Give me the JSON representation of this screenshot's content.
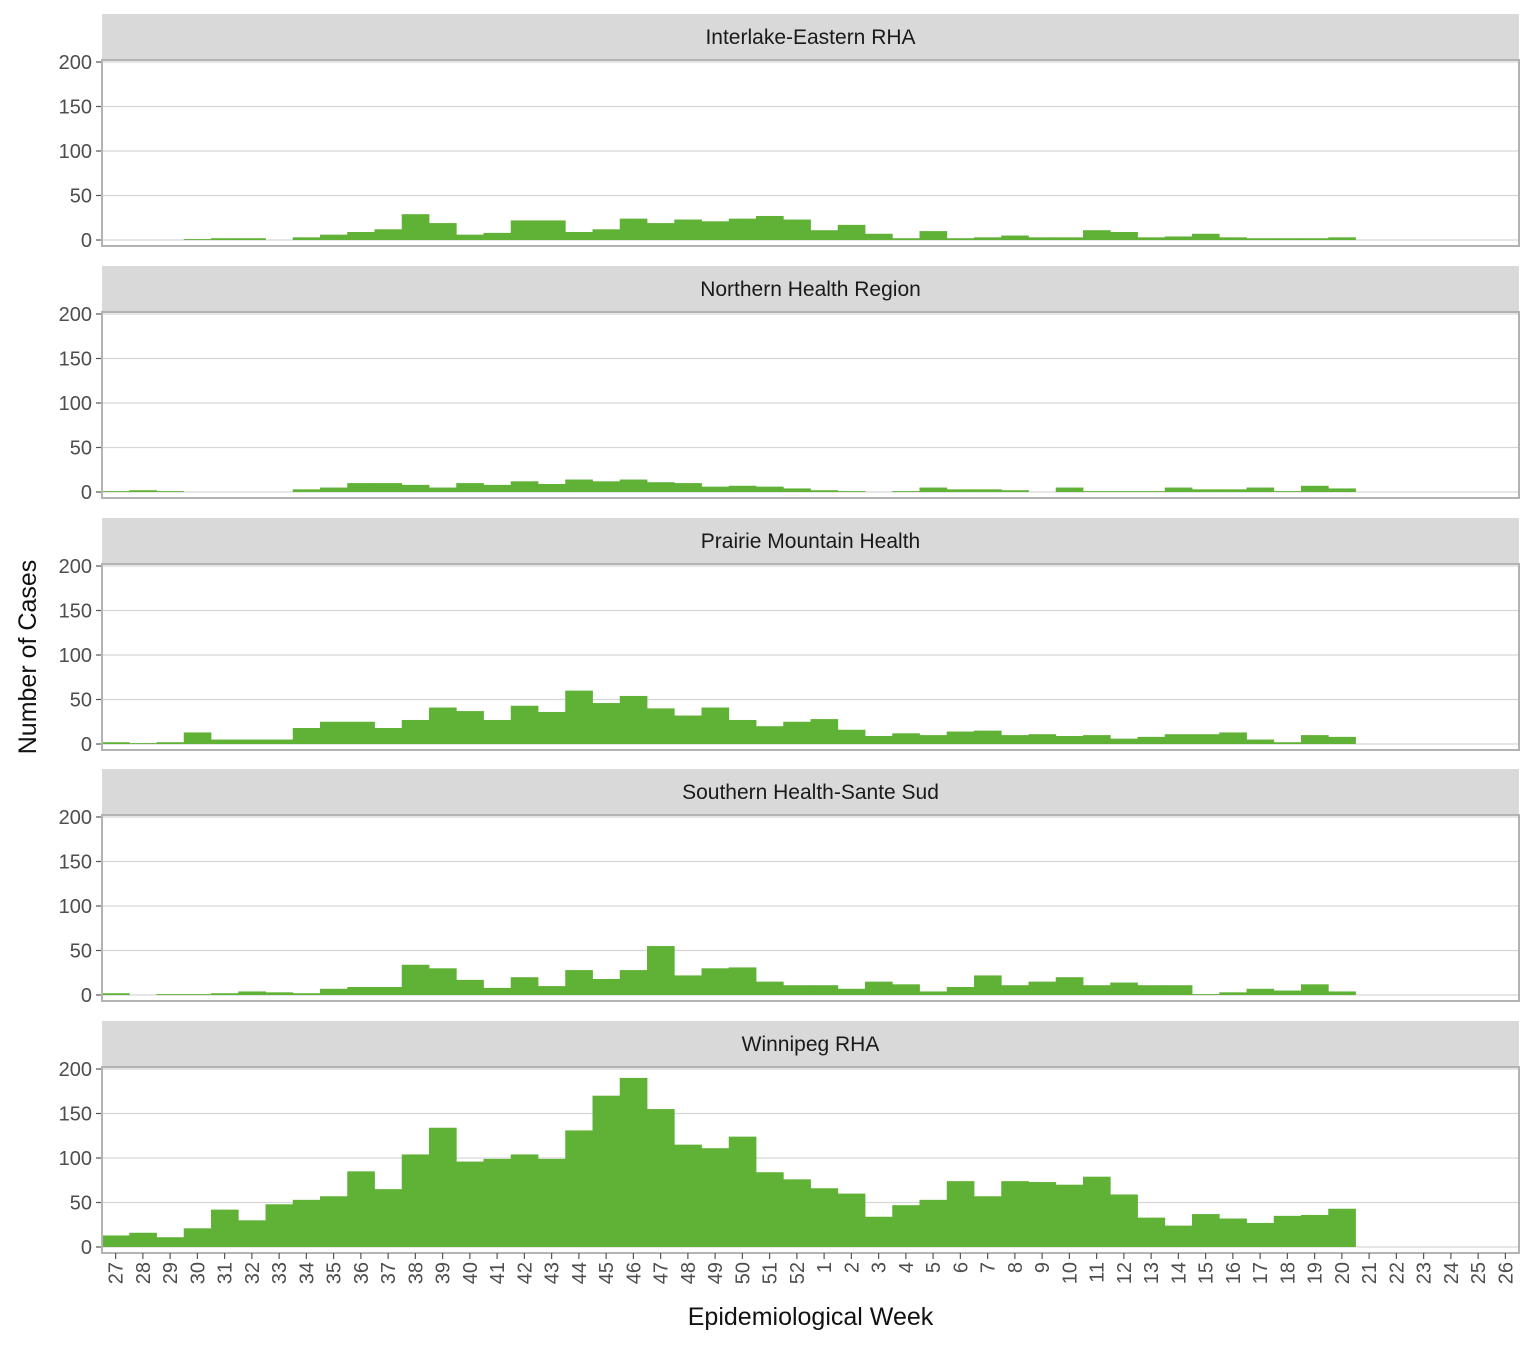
{
  "chart_data": {
    "type": "bar",
    "title": "",
    "xlabel": "Epidemiological Week",
    "ylabel": "Number of Cases",
    "ylim": [
      0,
      200
    ],
    "y_ticks": [
      0,
      50,
      100,
      150,
      200
    ],
    "grid": true,
    "bar_color": "#5fb236",
    "strip_color": "#d9d9d9",
    "categories": [
      "27",
      "28",
      "29",
      "30",
      "31",
      "32",
      "33",
      "34",
      "35",
      "36",
      "37",
      "38",
      "39",
      "40",
      "41",
      "42",
      "43",
      "44",
      "45",
      "46",
      "47",
      "48",
      "49",
      "50",
      "51",
      "52",
      "1",
      "2",
      "3",
      "4",
      "5",
      "6",
      "7",
      "8",
      "9",
      "10",
      "11",
      "12",
      "13",
      "14",
      "15",
      "16",
      "17",
      "18",
      "19",
      "20",
      "21",
      "22",
      "23",
      "24",
      "25",
      "26"
    ],
    "series": [
      {
        "name": "Interlake-Eastern RHA",
        "values": [
          0,
          0,
          0,
          1,
          2,
          2,
          0,
          3,
          6,
          9,
          12,
          29,
          19,
          6,
          8,
          22,
          22,
          9,
          12,
          24,
          19,
          23,
          21,
          24,
          27,
          23,
          11,
          17,
          7,
          2,
          10,
          2,
          3,
          5,
          3,
          3,
          11,
          9,
          3,
          4,
          7,
          3,
          2,
          2,
          2,
          3,
          0,
          0,
          0,
          0,
          0,
          0
        ]
      },
      {
        "name": "Northern Health Region",
        "values": [
          1,
          2,
          1,
          0,
          0,
          0,
          0,
          3,
          5,
          10,
          10,
          8,
          5,
          10,
          8,
          12,
          9,
          14,
          12,
          14,
          11,
          10,
          6,
          7,
          6,
          4,
          2,
          1,
          0,
          1,
          5,
          3,
          3,
          2,
          0,
          5,
          1,
          1,
          1,
          5,
          3,
          3,
          5,
          1,
          7,
          4,
          0,
          0,
          0,
          0,
          0,
          0
        ]
      },
      {
        "name": "Prairie Mountain Health",
        "values": [
          2,
          1,
          2,
          13,
          5,
          5,
          5,
          18,
          25,
          25,
          18,
          27,
          41,
          37,
          27,
          43,
          36,
          60,
          46,
          54,
          40,
          32,
          41,
          27,
          20,
          25,
          28,
          16,
          9,
          12,
          10,
          14,
          15,
          10,
          11,
          9,
          10,
          6,
          8,
          11,
          11,
          13,
          5,
          2,
          10,
          8,
          0,
          0,
          0,
          0,
          0,
          0
        ]
      },
      {
        "name": "Southern Health-Sante Sud",
        "values": [
          2,
          0,
          1,
          1,
          2,
          4,
          3,
          2,
          7,
          9,
          9,
          34,
          30,
          17,
          8,
          20,
          10,
          28,
          18,
          28,
          55,
          22,
          30,
          31,
          15,
          11,
          11,
          7,
          15,
          12,
          4,
          9,
          22,
          11,
          15,
          20,
          11,
          14,
          11,
          11,
          1,
          3,
          7,
          5,
          12,
          4,
          0,
          0,
          0,
          0,
          0,
          0
        ]
      },
      {
        "name": "Winnipeg RHA",
        "values": [
          13,
          16,
          11,
          21,
          42,
          30,
          48,
          53,
          57,
          85,
          65,
          104,
          134,
          96,
          99,
          104,
          99,
          131,
          170,
          190,
          155,
          115,
          111,
          124,
          84,
          76,
          66,
          60,
          34,
          47,
          53,
          74,
          57,
          74,
          73,
          70,
          79,
          59,
          33,
          24,
          37,
          32,
          27,
          35,
          36,
          43,
          0,
          0,
          0,
          0,
          0,
          0
        ]
      }
    ]
  }
}
